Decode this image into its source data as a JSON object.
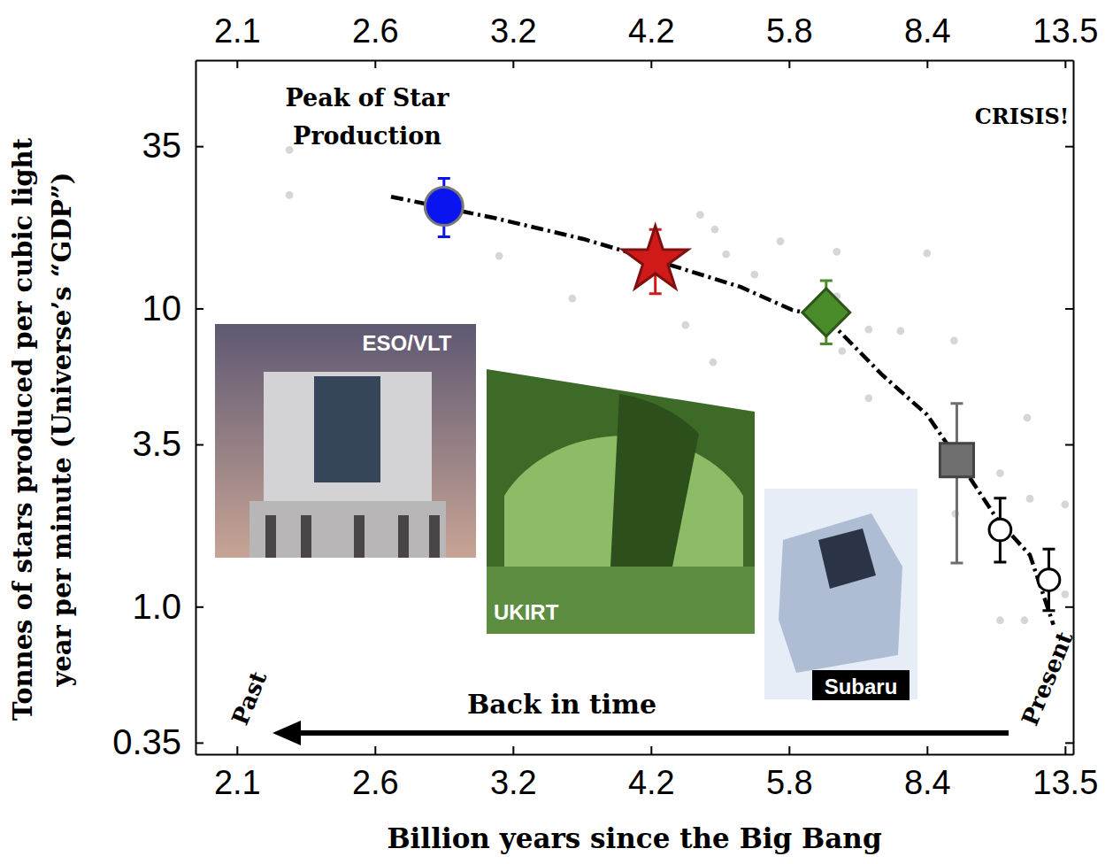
{
  "chart_data": {
    "type": "scatter",
    "xlabel": "Billion years since the Big Bang",
    "ylabel": [
      "Tonnes of stars produced per cubic light",
      "year per minute (Universe’s “GDP”)"
    ],
    "xlim": [
      1.95,
      13.8
    ],
    "xticks": [
      2.1,
      2.6,
      3.2,
      4.2,
      5.8,
      8.4,
      13.5
    ],
    "ylim": [
      0.32,
      68
    ],
    "yticks": [
      0.35,
      {
        "value": 1,
        "label": "1.0"
      },
      3.5,
      10,
      35
    ],
    "log": "y",
    "grid": false,
    "annotations": [
      "Peak of Star",
      "Production",
      "CRISIS!",
      "Back in time",
      "Past",
      "Present"
    ],
    "photo_labels": [
      "ESO/VLT",
      "UKIRT",
      "Subaru"
    ],
    "series": [
      {
        "type": "scatter",
        "marker": "circle",
        "color": "#0a14f0",
        "x": [
          2.9
        ],
        "values": [
          22
        ],
        "error_minus": [
          4.6
        ],
        "error_plus": [
          5.3
        ]
      },
      {
        "type": "scatter",
        "marker": "star",
        "color": "#d01a1a",
        "x": [
          4.25
        ],
        "values": [
          14.5
        ],
        "error_minus": [
          3.3
        ],
        "error_plus": [
          3.9
        ]
      },
      {
        "type": "scatter",
        "marker": "diamond",
        "color": "#4a8c2a",
        "x": [
          6.5
        ],
        "values": [
          9.7
        ],
        "error_minus": [
          2.1
        ],
        "error_plus": [
          2.7
        ]
      },
      {
        "type": "scatter",
        "marker": "square",
        "color": "#6e6e6e",
        "x": [
          9.5
        ],
        "values": [
          3.1
        ],
        "error_minus": [
          1.7
        ],
        "error_plus": [
          1.7
        ]
      },
      {
        "type": "scatter",
        "marker": "circle",
        "color": "#ffffff",
        "x": [
          11.1,
          12.9
        ],
        "values": [
          1.81,
          1.23
        ],
        "error_minus": [
          0.4,
          0.26
        ],
        "error_plus": [
          0.5,
          0.33
        ]
      },
      {
        "type": "line",
        "line_style": "dashdot",
        "color": "#000000",
        "x": [
          2.67,
          3.12,
          3.71,
          4.25,
          5.24,
          5.85,
          6.5,
          7.55,
          8.4,
          9.55,
          11.0,
          12.2,
          13.07
        ],
        "values": [
          23.7,
          20.1,
          17.1,
          14.5,
          11.8,
          9.9,
          9.3,
          6.0,
          4.4,
          3.1,
          1.96,
          1.49,
          0.87
        ]
      },
      {
        "type": "scatter",
        "marker": "circle",
        "color": "#c8c8c8",
        "x": [
          2.29,
          2.29,
          3.14,
          3.63,
          4.6,
          4.92,
          4.77,
          4.94,
          5.07,
          5.4,
          5.7,
          6.7,
          6.7,
          6.8,
          7.3,
          7.3,
          7.9,
          8.4,
          9.4,
          9.45,
          11.1,
          12.1,
          12.2,
          11.1,
          12.0,
          13.5,
          13.5
        ],
        "values": [
          34,
          24,
          15,
          10.8,
          8.8,
          6.6,
          20.6,
          18.4,
          15.2,
          13,
          16.8,
          15.5,
          11,
          7.2,
          8.5,
          5.0,
          8.4,
          15.3,
          7.8,
          2.05,
          2.8,
          4.3,
          2.3,
          0.9,
          0.9,
          2.2,
          1.1
        ]
      }
    ]
  }
}
